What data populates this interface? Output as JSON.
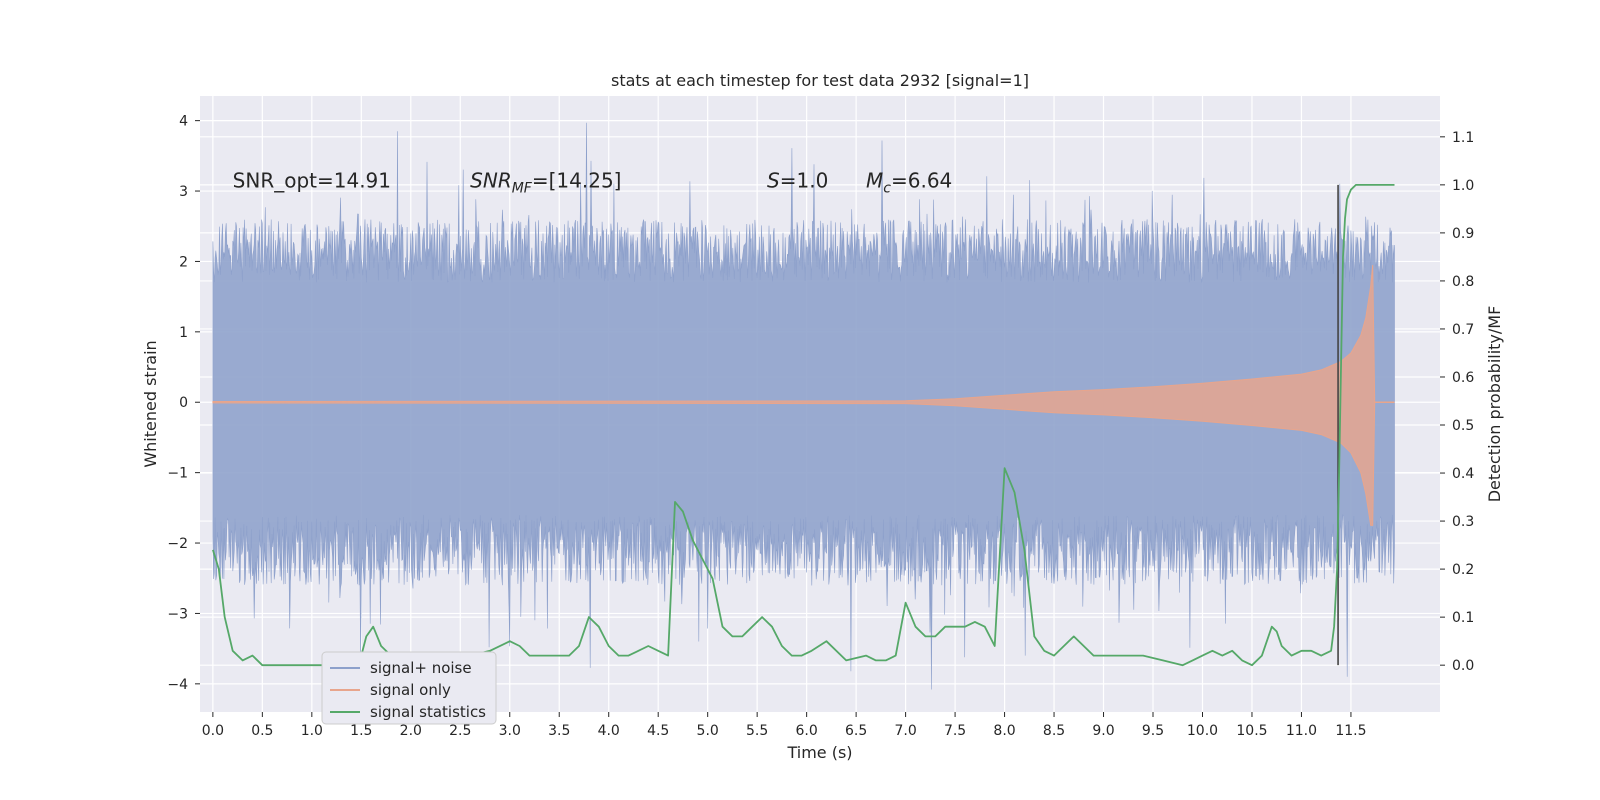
{
  "chart_data": {
    "type": "line",
    "title": "stats at each timestep for test data 2932 [signal=1]",
    "xlabel": "Time (s)",
    "ylabel": "Whitened strain",
    "y2label": "Detection probability/MF",
    "xlim": [
      -0.13,
      12.4
    ],
    "ylim": [
      -4.4,
      4.35
    ],
    "y2lim": [
      -0.0975,
      1.185
    ],
    "x_ticks": [
      0.0,
      0.5,
      1.0,
      1.5,
      2.0,
      2.5,
      3.0,
      3.5,
      4.0,
      4.5,
      5.0,
      5.5,
      6.0,
      6.5,
      7.0,
      7.5,
      8.0,
      8.5,
      9.0,
      9.5,
      10.0,
      10.5,
      11.0,
      11.5
    ],
    "x_tick_labels": [
      "0.0",
      "0.5",
      "1.0",
      "1.5",
      "2.0",
      "2.5",
      "3.0",
      "3.5",
      "4.0",
      "4.5",
      "5.0",
      "5.5",
      "6.0",
      "6.5",
      "7.0",
      "7.5",
      "8.0",
      "8.5",
      "9.0",
      "9.5",
      "10.0",
      "10.5",
      "11.0",
      "11.5"
    ],
    "y_ticks": [
      -4,
      -3,
      -2,
      -1,
      0,
      1,
      2,
      3,
      4
    ],
    "y_tick_labels": [
      "−4",
      "−3",
      "−2",
      "−1",
      "0",
      "1",
      "2",
      "3",
      "4"
    ],
    "y2_ticks": [
      0.0,
      0.1,
      0.2,
      0.3,
      0.4,
      0.5,
      0.6,
      0.7,
      0.8,
      0.9,
      1.0,
      1.1
    ],
    "y2_tick_labels": [
      "0.0",
      "0.1",
      "0.2",
      "0.3",
      "0.4",
      "0.5",
      "0.6",
      "0.7",
      "0.8",
      "0.9",
      "1.0",
      "1.1"
    ],
    "grid": true,
    "legend_position": "lower-left",
    "annotations": [
      {
        "id": "snr-opt",
        "text": "SNR_opt=14.91",
        "x": 0.2,
        "y": 3.05,
        "italic": false
      },
      {
        "id": "snr-mf",
        "text": "SNR_MF=[14.25]",
        "x": 2.6,
        "y": 3.05,
        "italic": true
      },
      {
        "id": "s-value",
        "text": "S=1.0",
        "x": 5.6,
        "y": 3.05,
        "italic": true
      },
      {
        "id": "mc-value",
        "text": "M_c=6.64",
        "x": 6.6,
        "y": 3.05,
        "italic": true
      }
    ],
    "series": [
      {
        "name": "signal+ noise",
        "color": "#8da0cb",
        "axis": "left",
        "style": "noise-band",
        "t_range": [
          0.0,
          11.94
        ],
        "upper_max": 3.97,
        "lower_min": -4.08
      },
      {
        "name": "signal only",
        "color": "#e8a58c",
        "axis": "left",
        "style": "chirp-envelope",
        "t": [
          0.0,
          7.0,
          7.5,
          8.0,
          8.5,
          9.0,
          9.5,
          10.0,
          10.5,
          11.0,
          11.2,
          11.4,
          11.5,
          11.6,
          11.65,
          11.7,
          11.72,
          11.74
        ],
        "upper": [
          0.01,
          0.02,
          0.05,
          0.1,
          0.15,
          0.18,
          0.22,
          0.27,
          0.33,
          0.4,
          0.46,
          0.58,
          0.7,
          0.95,
          1.2,
          1.65,
          1.95,
          0.0
        ],
        "lower": [
          -0.01,
          -0.02,
          -0.05,
          -0.1,
          -0.15,
          -0.18,
          -0.22,
          -0.27,
          -0.33,
          -0.4,
          -0.46,
          -0.58,
          -0.72,
          -1.0,
          -1.3,
          -1.75,
          -1.75,
          0.0
        ]
      },
      {
        "name": "signal statistics",
        "color": "#55a868",
        "axis": "right",
        "style": "line",
        "x": [
          0.0,
          0.06,
          0.12,
          0.2,
          0.3,
          0.4,
          0.5,
          0.6,
          0.7,
          0.8,
          0.9,
          1.0,
          1.1,
          1.2,
          1.3,
          1.4,
          1.5,
          1.55,
          1.62,
          1.7,
          1.8,
          1.9,
          2.0,
          2.2,
          2.4,
          2.6,
          2.8,
          3.0,
          3.1,
          3.2,
          3.3,
          3.4,
          3.5,
          3.6,
          3.7,
          3.8,
          3.9,
          4.0,
          4.1,
          4.2,
          4.3,
          4.4,
          4.5,
          4.6,
          4.67,
          4.75,
          4.85,
          4.95,
          5.05,
          5.15,
          5.25,
          5.35,
          5.45,
          5.55,
          5.65,
          5.75,
          5.85,
          5.95,
          6.05,
          6.2,
          6.4,
          6.6,
          6.7,
          6.8,
          6.9,
          7.0,
          7.1,
          7.2,
          7.3,
          7.4,
          7.5,
          7.6,
          7.7,
          7.8,
          7.9,
          8.0,
          8.1,
          8.2,
          8.3,
          8.4,
          8.5,
          8.6,
          8.7,
          8.8,
          8.9,
          9.0,
          9.2,
          9.4,
          9.6,
          9.8,
          9.9,
          10.0,
          10.1,
          10.2,
          10.3,
          10.4,
          10.5,
          10.6,
          10.7,
          10.75,
          10.8,
          10.9,
          11.0,
          11.1,
          11.2,
          11.3,
          11.33,
          11.36,
          11.38,
          11.4,
          11.42,
          11.44,
          11.46,
          11.5,
          11.55,
          11.6,
          11.7,
          11.8,
          11.9,
          11.94
        ],
        "y": [
          0.24,
          0.2,
          0.1,
          0.03,
          0.01,
          0.02,
          0.0,
          0.0,
          0.0,
          0.0,
          0.0,
          0.0,
          0.0,
          0.02,
          0.0,
          0.0,
          0.02,
          0.06,
          0.08,
          0.04,
          0.02,
          0.02,
          0.01,
          0.01,
          0.02,
          0.02,
          0.03,
          0.05,
          0.04,
          0.02,
          0.02,
          0.02,
          0.02,
          0.02,
          0.04,
          0.1,
          0.08,
          0.04,
          0.02,
          0.02,
          0.03,
          0.04,
          0.03,
          0.02,
          0.34,
          0.32,
          0.26,
          0.22,
          0.18,
          0.08,
          0.06,
          0.06,
          0.08,
          0.1,
          0.08,
          0.04,
          0.02,
          0.02,
          0.03,
          0.05,
          0.01,
          0.02,
          0.01,
          0.01,
          0.02,
          0.13,
          0.08,
          0.06,
          0.06,
          0.08,
          0.08,
          0.08,
          0.09,
          0.08,
          0.04,
          0.41,
          0.36,
          0.24,
          0.06,
          0.03,
          0.02,
          0.04,
          0.06,
          0.04,
          0.02,
          0.02,
          0.02,
          0.02,
          0.01,
          0.0,
          0.01,
          0.02,
          0.03,
          0.02,
          0.03,
          0.01,
          0.0,
          0.02,
          0.08,
          0.07,
          0.04,
          0.02,
          0.03,
          0.03,
          0.02,
          0.03,
          0.08,
          0.2,
          0.4,
          0.62,
          0.85,
          0.93,
          0.97,
          0.99,
          1.0,
          1.0,
          1.0,
          1.0,
          1.0,
          1.0
        ]
      }
    ],
    "marker_line": {
      "x": 11.37,
      "y_range": [
        0.0,
        1.0
      ],
      "color": "#444444"
    }
  }
}
